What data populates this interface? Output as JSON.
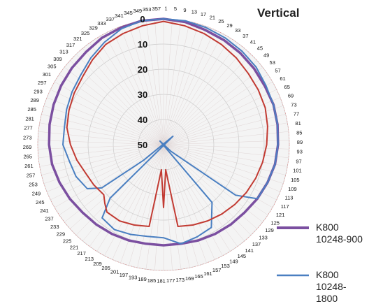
{
  "chart_data": {
    "type": "polar-line",
    "title": "Vertical",
    "angle_unit": "degrees",
    "angle_ticks": [
      1,
      5,
      9,
      13,
      17,
      21,
      25,
      29,
      33,
      37,
      41,
      45,
      49,
      53,
      57,
      61,
      65,
      69,
      73,
      77,
      81,
      85,
      89,
      93,
      97,
      101,
      105,
      109,
      113,
      117,
      121,
      125,
      129,
      133,
      137,
      141,
      145,
      149,
      153,
      157,
      161,
      165,
      169,
      173,
      177,
      181,
      185,
      189,
      193,
      197,
      201,
      205,
      209,
      213,
      217,
      221,
      225,
      229,
      233,
      237,
      241,
      245,
      249,
      253,
      257,
      261,
      265,
      269,
      273,
      277,
      281,
      285,
      289,
      293,
      297,
      301,
      305,
      309,
      313,
      317,
      321,
      325,
      329,
      333,
      337,
      341,
      345,
      349,
      353,
      357
    ],
    "radial_ticks": [
      0,
      10,
      20,
      30,
      40,
      50
    ],
    "radial_range": [
      0,
      50
    ],
    "radial_direction": "inverted",
    "grid": true,
    "legend_position": "bottom-right",
    "series": [
      {
        "name": "K800 10248-900",
        "color": "#7b4fa0",
        "angles": [
          0,
          10,
          20,
          30,
          40,
          50,
          60,
          70,
          80,
          90,
          100,
          110,
          120,
          130,
          140,
          150,
          160,
          170,
          180,
          190,
          200,
          210,
          220,
          230,
          240,
          250,
          260,
          270,
          280,
          290,
          300,
          310,
          320,
          330,
          340,
          350
        ],
        "values": [
          0,
          0.5,
          1.5,
          2,
          2.5,
          3,
          3.5,
          3.5,
          4,
          4.5,
          5,
          6,
          7,
          8,
          8.5,
          9,
          9.5,
          10,
          10,
          10,
          9.5,
          9,
          8.5,
          8,
          7,
          6,
          5,
          4.5,
          4,
          3.5,
          3,
          2.5,
          2,
          1,
          0.5,
          0
        ]
      },
      {
        "name": "K800 10248-1800",
        "color": "#4a7fc1",
        "angles": [
          0,
          10,
          20,
          30,
          40,
          50,
          60,
          70,
          80,
          90,
          100,
          110,
          120,
          125,
          128,
          132,
          135,
          140,
          150,
          160,
          170,
          180,
          190,
          200,
          210,
          220,
          225,
          228,
          232,
          235,
          240,
          250,
          260,
          270,
          280,
          290,
          300,
          310,
          320,
          330,
          340,
          350
        ],
        "values": [
          0,
          0,
          0.5,
          1,
          1.5,
          2,
          3,
          3.5,
          4,
          4.5,
          5,
          6,
          7,
          15,
          42,
          46,
          52,
          20,
          12,
          11,
          10,
          13,
          13,
          12,
          11,
          12,
          20,
          55,
          40,
          20,
          15,
          13,
          12,
          10,
          10,
          9,
          8,
          7,
          5,
          3,
          1,
          0
        ]
      },
      {
        "name": "",
        "color": "#c23b33",
        "angles": [
          0,
          10,
          20,
          30,
          40,
          50,
          60,
          70,
          80,
          90,
          100,
          110,
          120,
          130,
          140,
          150,
          160,
          170,
          175,
          180,
          185,
          190,
          200,
          210,
          220,
          225,
          230,
          240,
          250,
          260,
          270,
          280,
          290,
          300,
          310,
          320,
          330,
          340,
          350
        ],
        "values": [
          1,
          2,
          3,
          4,
          5,
          6,
          6.5,
          7,
          8,
          9,
          10,
          11,
          12,
          13,
          14,
          15,
          16,
          17,
          40,
          25,
          40,
          17,
          16,
          15,
          15,
          17,
          19,
          18,
          17,
          15,
          13,
          11,
          10,
          9,
          8,
          6,
          4,
          3,
          2
        ]
      }
    ]
  }
}
